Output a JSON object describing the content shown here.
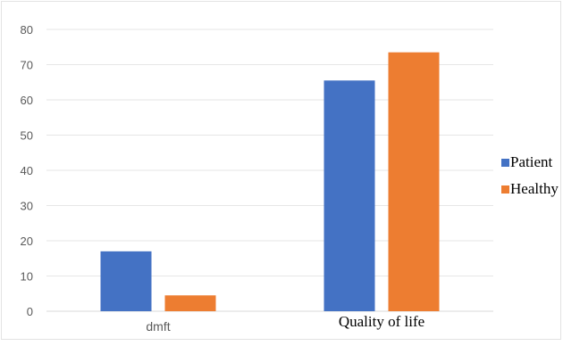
{
  "chart_data": {
    "type": "bar",
    "categories": [
      "dmft",
      "Quality of life"
    ],
    "series": [
      {
        "name": "Patient",
        "values": [
          17,
          65.5
        ],
        "color": "#4472C4"
      },
      {
        "name": "Healthy",
        "values": [
          4.5,
          73.5
        ],
        "color": "#ED7D31"
      }
    ],
    "ylim": [
      0,
      80
    ],
    "yticks": [
      0,
      10,
      20,
      30,
      40,
      50,
      60,
      70,
      80
    ],
    "grid": true,
    "legend_position": "right"
  }
}
